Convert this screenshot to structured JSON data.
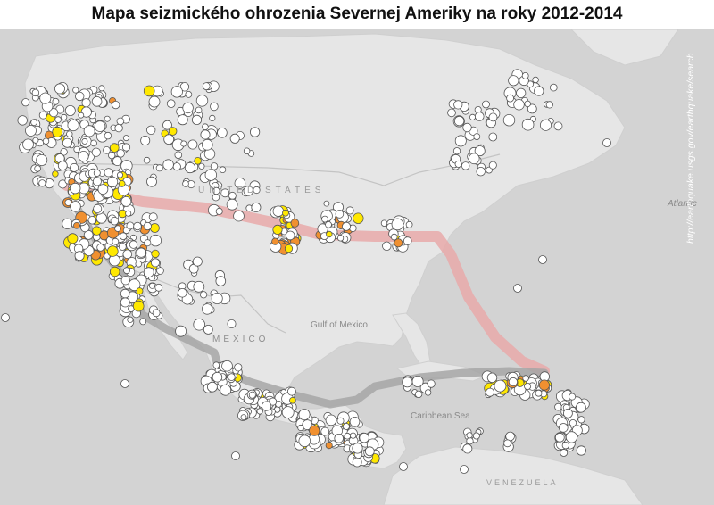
{
  "title": "Mapa seizmického ohrozenia Severnej Ameriky na roky 2012-2014",
  "source_text": "http://earthquake.usgs.gov/earthquake/search",
  "colors": {
    "ocean": "#d3d3d3",
    "land": "#e6e6e6",
    "border": "#c4c4c4",
    "hazard_band": "#e7a9a9",
    "plate_boundary": "#a6a6a6",
    "marker_low": "#ffffff",
    "marker_medium": "#ffe800",
    "marker_high": "#f09030",
    "marker_stroke": "#555555"
  },
  "map_labels": {
    "country_us": "UNITED STATES",
    "country_mexico": "MEXICO",
    "gulf": "Gulf of Mexico",
    "caribbean": "Caribbean Sea",
    "ocean": "Atlantic",
    "country_venezuela": "VENEZUELA"
  }
}
